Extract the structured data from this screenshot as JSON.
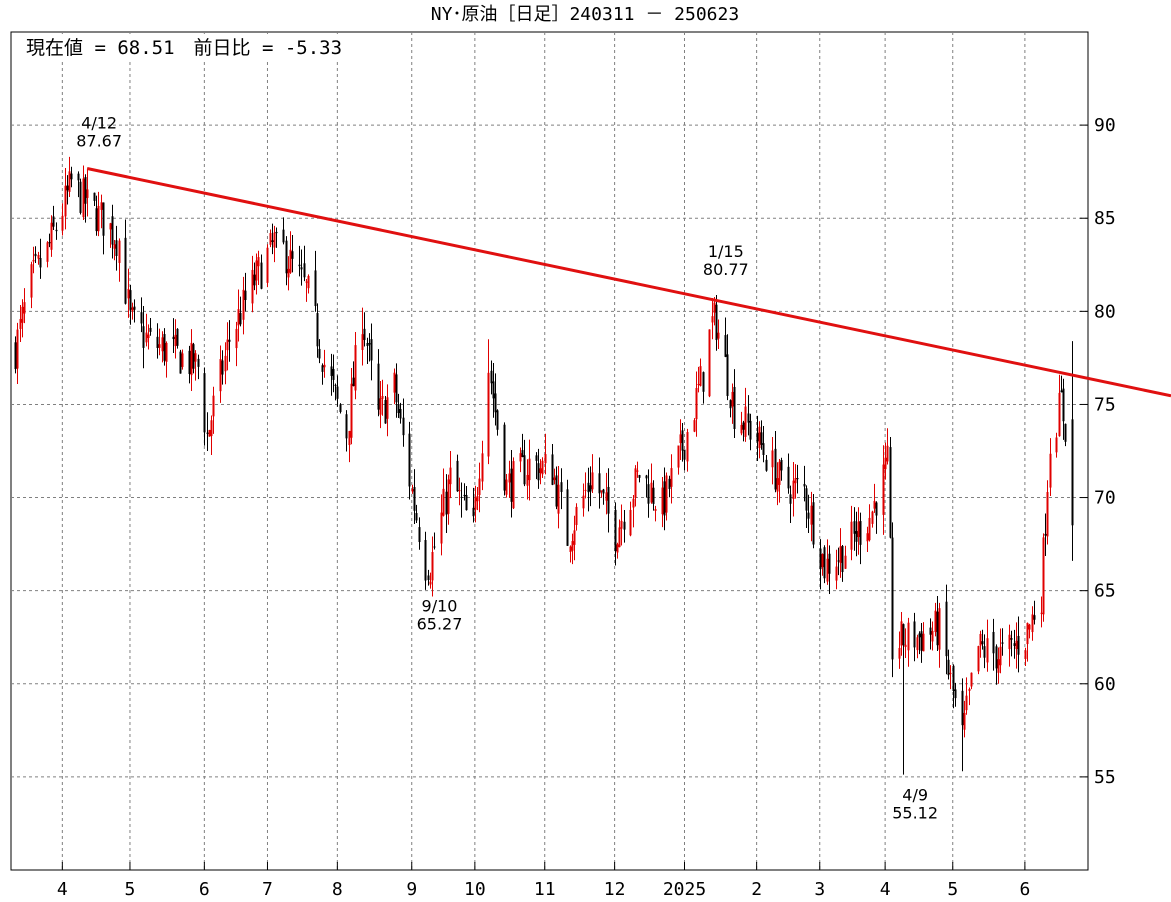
{
  "chart_data": {
    "type": "candlestick",
    "title": "NY･原油［日足］240311 － 250623",
    "current_label": "現在値 = 68.51　前日比 = -5.33",
    "ylim": [
      50,
      95
    ],
    "y_ticks": [
      55,
      60,
      65,
      70,
      75,
      80,
      85,
      90
    ],
    "grid": true,
    "colors": {
      "up": "#e00000",
      "down": "#000000",
      "trendline": "#e01010",
      "grid": "#808080"
    },
    "x_tick_labels": [
      "4",
      "5",
      "6",
      "7",
      "8",
      "9",
      "10",
      "11",
      "12",
      "2025",
      "2",
      "3",
      "4",
      "5",
      "6"
    ],
    "x_tick_dates": [
      "2024-04-01",
      "2024-05-01",
      "2024-06-03",
      "2024-07-01",
      "2024-08-01",
      "2024-09-03",
      "2024-10-01",
      "2024-11-01",
      "2024-12-02",
      "2025-01-02",
      "2025-02-03",
      "2025-03-03",
      "2025-04-01",
      "2025-05-01",
      "2025-06-02"
    ],
    "date_range": [
      "2024-03-11",
      "2025-06-23"
    ],
    "trendline": {
      "from": [
        "2024-04-12",
        87.67
      ],
      "to": [
        "2025-06-30",
        76.4
      ]
    },
    "annotations": [
      {
        "date": "2024-04-12",
        "date_label": "4/12",
        "value": 87.67,
        "position": "above"
      },
      {
        "date": "2024-09-10",
        "date_label": "9/10",
        "value": 65.27,
        "position": "below"
      },
      {
        "date": "2025-01-15",
        "date_label": "1/15",
        "value": 80.77,
        "position": "above"
      },
      {
        "date": "2025-04-09",
        "date_label": "4/9",
        "value": 55.12,
        "position": "below"
      }
    ],
    "close_path": [
      [
        "2024-03-11",
        78.0
      ],
      [
        "2024-03-18",
        81.6
      ],
      [
        "2024-03-25",
        83.2
      ],
      [
        "2024-04-01",
        85.5
      ],
      [
        "2024-04-05",
        86.9
      ],
      [
        "2024-04-12",
        85.7
      ],
      [
        "2024-04-19",
        84.9
      ],
      [
        "2024-04-26",
        83.8
      ],
      [
        "2024-05-01",
        79.5
      ],
      [
        "2024-05-10",
        78.3
      ],
      [
        "2024-05-20",
        77.8
      ],
      [
        "2024-05-31",
        77.0
      ],
      [
        "2024-06-04",
        73.3
      ],
      [
        "2024-06-14",
        78.5
      ],
      [
        "2024-06-24",
        81.4
      ],
      [
        "2024-07-05",
        83.9
      ],
      [
        "2024-07-12",
        82.4
      ],
      [
        "2024-07-19",
        80.9
      ],
      [
        "2024-07-26",
        77.2
      ],
      [
        "2024-08-05",
        73.5
      ],
      [
        "2024-08-12",
        79.8
      ],
      [
        "2024-08-19",
        74.3
      ],
      [
        "2024-08-26",
        75.9
      ],
      [
        "2024-09-03",
        70.3
      ],
      [
        "2024-09-10",
        65.8
      ],
      [
        "2024-09-20",
        71.0
      ],
      [
        "2024-09-30",
        68.2
      ],
      [
        "2024-10-07",
        77.1
      ],
      [
        "2024-10-15",
        70.6
      ],
      [
        "2024-10-25",
        71.8
      ],
      [
        "2024-11-04",
        71.5
      ],
      [
        "2024-11-11",
        67.9
      ],
      [
        "2024-11-22",
        71.2
      ],
      [
        "2024-12-02",
        68.1
      ],
      [
        "2024-12-13",
        71.3
      ],
      [
        "2024-12-23",
        69.5
      ],
      [
        "2025-01-02",
        73.1
      ],
      [
        "2025-01-10",
        76.6
      ],
      [
        "2025-01-15",
        80.0
      ],
      [
        "2025-01-24",
        74.7
      ],
      [
        "2025-02-03",
        73.2
      ],
      [
        "2025-02-14",
        70.7
      ],
      [
        "2025-02-24",
        70.4
      ],
      [
        "2025-03-05",
        66.3
      ],
      [
        "2025-03-14",
        67.2
      ],
      [
        "2025-03-25",
        69.0
      ],
      [
        "2025-04-02",
        71.7
      ],
      [
        "2025-04-04",
        61.9
      ],
      [
        "2025-04-09",
        62.4
      ],
      [
        "2025-04-16",
        62.5
      ],
      [
        "2025-04-25",
        63.0
      ],
      [
        "2025-05-05",
        57.1
      ],
      [
        "2025-05-12",
        61.9
      ],
      [
        "2025-05-23",
        61.5
      ],
      [
        "2025-06-02",
        62.5
      ],
      [
        "2025-06-09",
        64.9
      ],
      [
        "2025-06-13",
        73.0
      ],
      [
        "2025-06-18",
        75.1
      ],
      [
        "2025-06-20",
        73.8
      ],
      [
        "2025-06-23",
        68.51
      ]
    ],
    "extremes": [
      [
        "2024-04-12",
        87.67,
        "high"
      ],
      [
        "2024-06-04",
        72.5,
        "low"
      ],
      [
        "2024-07-05",
        84.5,
        "high"
      ],
      [
        "2024-08-12",
        80.2,
        "high"
      ],
      [
        "2024-09-10",
        65.27,
        "low"
      ],
      [
        "2024-10-07",
        78.5,
        "high"
      ],
      [
        "2025-01-15",
        80.77,
        "high"
      ],
      [
        "2025-04-09",
        55.12,
        "low"
      ],
      [
        "2025-05-05",
        55.3,
        "low"
      ],
      [
        "2025-06-23",
        78.4,
        "high"
      ],
      [
        "2025-06-23",
        66.6,
        "low"
      ]
    ]
  }
}
